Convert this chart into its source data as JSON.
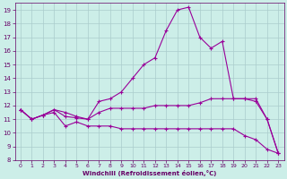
{
  "xlabel": "Windchill (Refroidissement éolien,°C)",
  "xlim": [
    -0.5,
    23.5
  ],
  "ylim": [
    8,
    19.5
  ],
  "yticks": [
    8,
    9,
    10,
    11,
    12,
    13,
    14,
    15,
    16,
    17,
    18,
    19
  ],
  "xticks": [
    0,
    1,
    2,
    3,
    4,
    5,
    6,
    7,
    8,
    9,
    10,
    11,
    12,
    13,
    14,
    15,
    16,
    17,
    18,
    19,
    20,
    21,
    22,
    23
  ],
  "background_color": "#cceee8",
  "grid_color": "#aacccc",
  "line_color": "#990099",
  "line_width": 0.8,
  "marker": "+",
  "marker_size": 3,
  "lines": [
    {
      "x": [
        0,
        1,
        2,
        3,
        4,
        5,
        6,
        7,
        8,
        9,
        10,
        11,
        12,
        13,
        14,
        15,
        16,
        17,
        18,
        19,
        20,
        21,
        22,
        23
      ],
      "y": [
        11.7,
        11.0,
        11.3,
        11.7,
        11.2,
        11.1,
        11.0,
        12.3,
        12.5,
        13.0,
        14.0,
        15.0,
        15.5,
        17.5,
        19.0,
        19.2,
        17.0,
        16.2,
        16.7,
        12.5,
        12.5,
        12.5,
        11.0,
        8.5
      ]
    },
    {
      "x": [
        0,
        1,
        2,
        3,
        4,
        5,
        6,
        7,
        8,
        9,
        10,
        11,
        12,
        13,
        14,
        15,
        16,
        17,
        18,
        19,
        20,
        21,
        22,
        23
      ],
      "y": [
        11.7,
        11.0,
        11.3,
        11.7,
        11.5,
        11.2,
        11.0,
        11.5,
        11.8,
        11.8,
        11.8,
        11.8,
        12.0,
        12.0,
        12.0,
        12.0,
        12.2,
        12.5,
        12.5,
        12.5,
        12.5,
        12.3,
        11.0,
        8.5
      ]
    },
    {
      "x": [
        0,
        1,
        2,
        3,
        4,
        5,
        6,
        7,
        8,
        9,
        10,
        11,
        12,
        13,
        14,
        15,
        16,
        17,
        18,
        19,
        20,
        21,
        22,
        23
      ],
      "y": [
        11.7,
        11.0,
        11.3,
        11.5,
        10.5,
        10.8,
        10.5,
        10.5,
        10.5,
        10.3,
        10.3,
        10.3,
        10.3,
        10.3,
        10.3,
        10.3,
        10.3,
        10.3,
        10.3,
        10.3,
        9.8,
        9.5,
        8.8,
        8.5
      ]
    }
  ]
}
